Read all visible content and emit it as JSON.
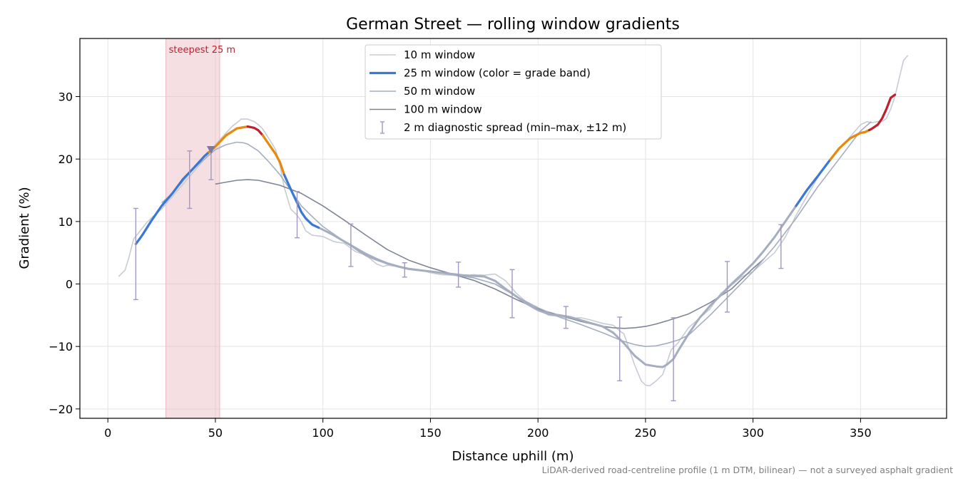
{
  "chart_data": {
    "type": "line",
    "title": "German Street — rolling window gradients",
    "xlabel": "Distance uphill (m)",
    "ylabel": "Gradient (%)",
    "xlim": [
      -13,
      390
    ],
    "ylim": [
      -21.5,
      39.3
    ],
    "xticks": [
      0,
      50,
      100,
      150,
      200,
      250,
      300,
      350
    ],
    "yticks": [
      -20,
      -10,
      0,
      10,
      20,
      30
    ],
    "grid": true,
    "legend_position": "top-center",
    "colors": {
      "w10": "#c7cbd4",
      "w50": "#a4aec0",
      "w100": "#7e8696",
      "band_blue": "#3a78d4",
      "band_orange": "#e8890c",
      "band_red": "#c0202e",
      "errorbar": "#a398c0",
      "shade": "#e9b8c0",
      "annotation": "#c0202e"
    },
    "steepest_annotation": {
      "label": "steepest 25 m",
      "x_start": 27,
      "x_end": 52,
      "marker_x": 48,
      "marker_y": 21.5
    },
    "series": [
      {
        "name": "10 m window",
        "x": [
          5,
          8,
          10,
          12,
          15,
          18,
          20,
          25,
          30,
          35,
          40,
          45,
          50,
          55,
          58,
          60,
          62,
          65,
          68,
          70,
          72,
          75,
          78,
          80,
          82,
          85,
          88,
          90,
          92,
          95,
          100,
          105,
          110,
          115,
          120,
          125,
          128,
          130,
          135,
          140,
          145,
          150,
          155,
          160,
          165,
          170,
          175,
          180,
          185,
          190,
          195,
          200,
          205,
          210,
          215,
          220,
          225,
          230,
          235,
          238,
          240,
          242,
          245,
          248,
          250,
          252,
          255,
          258,
          260,
          262,
          265,
          270,
          275,
          280,
          285,
          290,
          295,
          300,
          305,
          310,
          315,
          320,
          325,
          330,
          335,
          340,
          345,
          350,
          353,
          355,
          358,
          360,
          362,
          364,
          366,
          368,
          370,
          372
        ],
        "y": [
          1.2,
          2.2,
          4.5,
          7.2,
          8.5,
          9.8,
          10.5,
          12.0,
          14.0,
          16.0,
          18.0,
          20.0,
          22.3,
          24.2,
          25.3,
          25.8,
          26.4,
          26.4,
          26.0,
          25.5,
          24.8,
          23.2,
          21.5,
          19.0,
          15.5,
          12.0,
          11.0,
          10.0,
          8.5,
          7.8,
          7.6,
          6.8,
          6.5,
          5.2,
          4.6,
          3.2,
          2.8,
          3.0,
          2.8,
          2.5,
          2.3,
          1.8,
          1.5,
          1.4,
          1.2,
          1.5,
          1.4,
          1.6,
          0.5,
          -1.5,
          -3.0,
          -4.0,
          -5.0,
          -5.2,
          -5.5,
          -5.4,
          -5.8,
          -6.3,
          -6.6,
          -7.5,
          -8.0,
          -10.0,
          -13.0,
          -15.5,
          -16.2,
          -16.3,
          -15.5,
          -14.5,
          -12.5,
          -10.5,
          -9.5,
          -7.0,
          -5.5,
          -4.0,
          -1.5,
          -0.2,
          1.2,
          2.0,
          3.5,
          5.0,
          7.5,
          11.0,
          14.0,
          17.0,
          19.5,
          21.5,
          23.5,
          25.5,
          26.0,
          25.8,
          26.0,
          26.0,
          26.5,
          28.0,
          30.0,
          33.0,
          35.8,
          36.6
        ]
      },
      {
        "name": "25 m window (color = grade band)",
        "x": [
          13,
          16,
          20,
          25,
          30,
          35,
          40,
          45,
          50,
          55,
          60,
          65,
          68,
          70,
          72,
          75,
          78,
          80,
          82,
          85,
          88,
          90,
          92,
          95,
          100,
          105,
          110,
          115,
          120,
          125,
          130,
          135,
          140,
          145,
          150,
          155,
          160,
          165,
          170,
          175,
          180,
          185,
          190,
          195,
          200,
          205,
          210,
          215,
          220,
          225,
          230,
          235,
          240,
          245,
          250,
          255,
          258,
          260,
          263,
          265,
          270,
          275,
          280,
          285,
          290,
          295,
          300,
          305,
          310,
          315,
          320,
          325,
          330,
          335,
          340,
          345,
          350,
          352,
          355,
          358,
          360,
          362,
          364,
          366
        ],
        "y": [
          6.4,
          7.8,
          10.0,
          12.5,
          14.5,
          16.8,
          18.6,
          20.5,
          22.0,
          23.8,
          24.9,
          25.2,
          25.0,
          24.6,
          23.8,
          22.3,
          20.8,
          19.5,
          17.5,
          15.2,
          13.0,
          11.5,
          10.5,
          9.5,
          8.7,
          7.8,
          6.8,
          5.8,
          4.8,
          4.0,
          3.3,
          2.8,
          2.4,
          2.2,
          2.0,
          1.8,
          1.6,
          1.4,
          1.3,
          1.2,
          0.5,
          -0.8,
          -2.0,
          -3.2,
          -4.2,
          -4.8,
          -5.0,
          -5.3,
          -5.8,
          -6.3,
          -6.8,
          -7.8,
          -9.5,
          -11.5,
          -12.9,
          -13.2,
          -13.3,
          -12.9,
          -12.0,
          -10.8,
          -8.0,
          -5.5,
          -3.5,
          -1.8,
          0.0,
          1.6,
          3.3,
          5.3,
          7.5,
          10.0,
          12.5,
          15.0,
          17.2,
          19.5,
          21.7,
          23.3,
          24.2,
          24.3,
          24.8,
          25.5,
          26.5,
          28.0,
          29.8,
          30.3
        ],
        "bands": [
          {
            "color": "band_blue",
            "x_from": 13,
            "x_to": 47
          },
          {
            "color": "band_orange",
            "x_from": 47,
            "x_to": 65
          },
          {
            "color": "band_red",
            "x_from": 65,
            "x_to": 72
          },
          {
            "color": "band_orange",
            "x_from": 72,
            "x_to": 82
          },
          {
            "color": "band_blue",
            "x_from": 82,
            "x_to": 98
          },
          {
            "color": "band_blue",
            "x_from": 320,
            "x_to": 336
          },
          {
            "color": "band_orange",
            "x_from": 336,
            "x_to": 354
          },
          {
            "color": "band_red",
            "x_from": 354,
            "x_to": 366
          }
        ]
      },
      {
        "name": "50 m window",
        "x": [
          25,
          30,
          35,
          40,
          45,
          50,
          55,
          60,
          63,
          65,
          70,
          75,
          80,
          85,
          90,
          95,
          100,
          105,
          110,
          115,
          120,
          125,
          130,
          140,
          150,
          160,
          170,
          180,
          190,
          200,
          210,
          220,
          230,
          240,
          245,
          250,
          255,
          260,
          265,
          270,
          280,
          290,
          300,
          310,
          320,
          330,
          340,
          350,
          355
        ],
        "y": [
          13.0,
          14.5,
          16.5,
          18.5,
          20.0,
          21.5,
          22.3,
          22.7,
          22.6,
          22.4,
          21.3,
          19.5,
          17.5,
          15.0,
          12.5,
          10.8,
          9.2,
          8.0,
          6.8,
          5.6,
          4.5,
          3.8,
          3.2,
          2.5,
          2.0,
          1.5,
          1.0,
          0.0,
          -2.0,
          -3.8,
          -5.3,
          -6.5,
          -7.8,
          -9.2,
          -9.7,
          -10.0,
          -9.9,
          -9.5,
          -9.0,
          -8.2,
          -5.0,
          -1.5,
          2.0,
          6.0,
          10.5,
          15.5,
          20.0,
          24.5,
          26.0
        ]
      },
      {
        "name": "100 m window",
        "x": [
          50,
          55,
          60,
          65,
          70,
          80,
          90,
          100,
          110,
          120,
          130,
          140,
          150,
          160,
          170,
          180,
          190,
          200,
          210,
          220,
          230,
          235,
          240,
          245,
          250,
          255,
          260,
          270,
          280,
          290,
          300,
          305
        ],
        "y": [
          16.0,
          16.3,
          16.6,
          16.7,
          16.6,
          15.8,
          14.5,
          12.5,
          10.2,
          7.8,
          5.5,
          3.8,
          2.6,
          1.6,
          0.6,
          -0.8,
          -2.5,
          -4.0,
          -5.0,
          -6.0,
          -6.8,
          -7.0,
          -7.1,
          -7.0,
          -6.8,
          -6.4,
          -5.9,
          -4.8,
          -3.0,
          -0.8,
          2.5,
          4.0
        ]
      }
    ],
    "diagnostic_spread": {
      "name": "2 m diagnostic spread (min–max, ±12 m)",
      "points": [
        {
          "x": 13,
          "min": -2.5,
          "max": 12.1
        },
        {
          "x": 38,
          "min": 12.1,
          "max": 21.3
        },
        {
          "x": 48,
          "min": 16.7,
          "max": 21.6
        },
        {
          "x": 88,
          "min": 7.4,
          "max": 14.8
        },
        {
          "x": 113,
          "min": 2.8,
          "max": 9.6
        },
        {
          "x": 138,
          "min": 1.1,
          "max": 3.4
        },
        {
          "x": 163,
          "min": -0.5,
          "max": 3.5
        },
        {
          "x": 188,
          "min": -5.4,
          "max": 2.3
        },
        {
          "x": 213,
          "min": -7.1,
          "max": -3.6
        },
        {
          "x": 238,
          "min": -15.5,
          "max": -5.3
        },
        {
          "x": 263,
          "min": -18.7,
          "max": -5.4
        },
        {
          "x": 288,
          "min": -4.5,
          "max": 3.6
        },
        {
          "x": 313,
          "min": 2.5,
          "max": 9.5
        }
      ]
    }
  },
  "footnote": "LiDAR-derived road-centreline profile (1 m DTM, bilinear) — not a surveyed asphalt gradient"
}
